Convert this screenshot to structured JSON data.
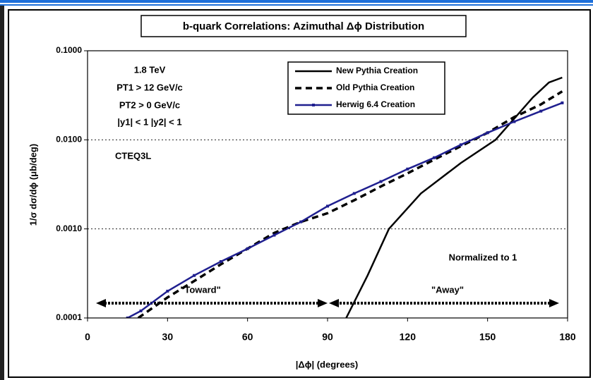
{
  "chart_data": {
    "type": "line",
    "title": "b-quark Correlations: Azimuthal Δϕ Distribution",
    "x_label": "|Δϕ| (degrees)",
    "y_label": "1/σ dσ/dϕ (μb/deg)",
    "annotations": [
      "1.8 TeV",
      "PT1 > 12 GeV/c",
      "PT2 > 0 GeV/c",
      "|y1| < 1  |y2| < 1",
      "CTEQ3L",
      "Normalized to 1",
      "\"Toward\"",
      "\"Away\""
    ],
    "log_y": true,
    "grid": true,
    "legend": "top-right",
    "xlim": [
      0,
      180
    ],
    "xticks": [
      0,
      30,
      60,
      90,
      120,
      150,
      180
    ],
    "ylim": [
      0.0001,
      0.1
    ],
    "yticks": [
      {
        "value": 0.0001,
        "label": "0.0001"
      },
      {
        "value": 0.001,
        "label": "0.0010"
      },
      {
        "value": 0.01,
        "label": "0.0100"
      },
      {
        "value": 0.1,
        "label": "0.1000"
      }
    ],
    "series": [
      {
        "name": "New Pythia Creation",
        "color": "#000000",
        "style": "solid",
        "marker": false,
        "x": [
          97,
          105,
          113,
          125,
          140,
          153,
          167,
          173,
          178
        ],
        "values": [
          0.0001,
          0.0003,
          0.001,
          0.0025,
          0.0055,
          0.01,
          0.03,
          0.044,
          0.05
        ]
      },
      {
        "name": "Old Pythia Creation",
        "color": "#000000",
        "style": "dashed",
        "marker": false,
        "x": [
          19,
          30,
          40,
          50,
          60,
          70,
          80,
          90,
          100,
          110,
          120,
          130,
          140,
          150,
          160,
          170,
          178
        ],
        "values": [
          0.0001,
          0.00017,
          0.00026,
          0.0004,
          0.0006,
          0.0009,
          0.0012,
          0.0015,
          0.0021,
          0.003,
          0.0042,
          0.006,
          0.0085,
          0.012,
          0.018,
          0.025,
          0.035
        ]
      },
      {
        "name": "Herwig 6.4 Creation",
        "color": "#1f1f8f",
        "style": "solid",
        "marker": true,
        "x": [
          15,
          20,
          30,
          40,
          50,
          60,
          70,
          80,
          90,
          100,
          110,
          120,
          130,
          140,
          150,
          160,
          170,
          178
        ],
        "values": [
          0.0001,
          0.00012,
          0.0002,
          0.0003,
          0.00043,
          0.0006,
          0.00085,
          0.0012,
          0.0018,
          0.0025,
          0.0034,
          0.0047,
          0.0063,
          0.0088,
          0.012,
          0.016,
          0.021,
          0.026
        ]
      }
    ]
  }
}
